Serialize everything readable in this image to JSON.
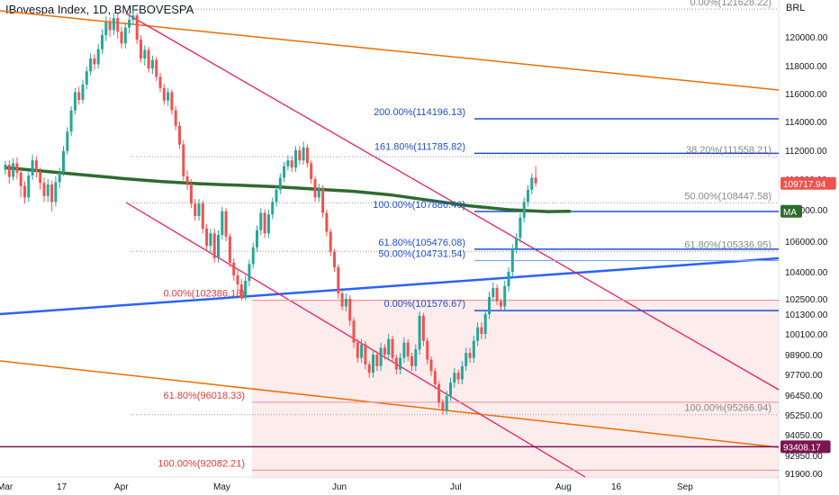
{
  "chart_title": "IBovespa Index, 1D, BMFBOVESPA",
  "currency": "BRL",
  "colors": {
    "up": "#26a69a",
    "down": "#ef5350",
    "ma": "#2e6b2e",
    "channel": "#e91e63",
    "trend_orange": "#ef6c00",
    "trend_blue": "#2962ff",
    "fib_blue": "#1e50d2",
    "fib_red": "#e53935",
    "fib_gray": "#888888",
    "support_line": "#7b1450",
    "shade": "#fdecec"
  },
  "chart_data": {
    "type": "candlestick",
    "title": "IBovespa Index, 1D, BMFBOVESPA",
    "x_ticks": [
      "Mar",
      "17",
      "Apr",
      "May",
      "Jun",
      "Jul",
      "Aug",
      "16",
      "Sep"
    ],
    "y_ticks": [
      120000,
      118000,
      116000,
      114000,
      112000,
      110000,
      108000,
      106000,
      104000,
      102500,
      101300,
      100100,
      98900,
      97700,
      96450,
      95250,
      94050,
      92950,
      91900
    ],
    "y_tick_labels": [
      "120000.00",
      "118000.00",
      "116000.00",
      "114000.00",
      "112000.00",
      "110000.00",
      "108000.00",
      "106000.00",
      "104000.00",
      "102500.00",
      "101300.00",
      "100100.00",
      "98900.00",
      "97700.00",
      "96450.00",
      "95250.00",
      "94050.00",
      "92950.00",
      "91900.00"
    ],
    "price_badges": [
      {
        "label": "109717.94",
        "value": 109717.94,
        "color": "#ef5350"
      },
      {
        "label": "MA",
        "value": 107900,
        "color": "#2e6b2e"
      },
      {
        "label": "93408.17",
        "value": 93408.17,
        "color": "#7b1450"
      }
    ],
    "fib_labels": [
      {
        "text": "0.00%(121628.22)",
        "value": 121628.22,
        "color": "#888888",
        "side": "right"
      },
      {
        "text": "200.00%(114196.13)",
        "value": 114196.13,
        "color": "#1e50d2",
        "side": "left"
      },
      {
        "text": "161.80%(111785.82)",
        "value": 111785.82,
        "color": "#1e50d2",
        "side": "left"
      },
      {
        "text": "38.20%(111558.21)",
        "value": 111558.21,
        "color": "#888888",
        "side": "right"
      },
      {
        "text": "50.00%(108447.58)",
        "value": 108447.58,
        "color": "#888888",
        "side": "right"
      },
      {
        "text": "100.00%(107886.40)",
        "value": 107886.4,
        "color": "#1e50d2",
        "side": "left"
      },
      {
        "text": "61.80%(105476.08)",
        "value": 105476.08,
        "color": "#1e50d2",
        "side": "left"
      },
      {
        "text": "50.00%(104731.54)",
        "value": 104731.54,
        "color": "#1e50d2",
        "side": "left"
      },
      {
        "text": "61.80%(105336.95)",
        "value": 105336.95,
        "color": "#888888",
        "side": "right"
      },
      {
        "text": "0.00%(102386.18)",
        "value": 102386.18,
        "color": "#e53935",
        "side": "left"
      },
      {
        "text": "0.00%(101576.67)",
        "value": 101576.67,
        "color": "#1e50d2",
        "side": "left"
      },
      {
        "text": "61.80%(96018.33)",
        "value": 96018.33,
        "color": "#e53935",
        "side": "left"
      },
      {
        "text": "100.00%(95266.94)",
        "value": 95266.94,
        "color": "#888888",
        "side": "right"
      },
      {
        "text": "100.00%(92082.21)",
        "value": 92082.21,
        "color": "#e53935",
        "side": "left"
      }
    ],
    "ma_series": [
      {
        "day": 0,
        "value": 110800
      },
      {
        "day": 10,
        "value": 110550
      },
      {
        "day": 20,
        "value": 110300
      },
      {
        "day": 30,
        "value": 110050
      },
      {
        "day": 40,
        "value": 109850
      },
      {
        "day": 50,
        "value": 109700
      },
      {
        "day": 60,
        "value": 109600
      },
      {
        "day": 70,
        "value": 109500
      },
      {
        "day": 80,
        "value": 109350
      },
      {
        "day": 90,
        "value": 109200
      },
      {
        "day": 100,
        "value": 108950
      },
      {
        "day": 110,
        "value": 108600
      },
      {
        "day": 120,
        "value": 108250
      },
      {
        "day": 130,
        "value": 108000
      },
      {
        "day": 140,
        "value": 107880
      },
      {
        "day": 146,
        "value": 107900
      }
    ],
    "candles": [
      {
        "o": 110650,
        "c": 111000,
        "h": 111250,
        "l": 110300
      },
      {
        "o": 111000,
        "c": 110150,
        "h": 111300,
        "l": 109700
      },
      {
        "o": 110150,
        "c": 111100,
        "h": 111450,
        "l": 109900
      },
      {
        "o": 111100,
        "c": 110450,
        "h": 111500,
        "l": 110000
      },
      {
        "o": 110450,
        "c": 109550,
        "h": 110700,
        "l": 108800
      },
      {
        "o": 109550,
        "c": 108800,
        "h": 109850,
        "l": 108400
      },
      {
        "o": 108800,
        "c": 110250,
        "h": 110600,
        "l": 108500
      },
      {
        "o": 110250,
        "c": 111300,
        "h": 111700,
        "l": 109950
      },
      {
        "o": 111300,
        "c": 110500,
        "h": 111600,
        "l": 110100
      },
      {
        "o": 110500,
        "c": 109750,
        "h": 110800,
        "l": 109300
      },
      {
        "o": 109750,
        "c": 108900,
        "h": 110100,
        "l": 108500
      },
      {
        "o": 108900,
        "c": 109650,
        "h": 110000,
        "l": 108500
      },
      {
        "o": 109650,
        "c": 108500,
        "h": 109900,
        "l": 107900
      },
      {
        "o": 108500,
        "c": 109800,
        "h": 110200,
        "l": 108200
      },
      {
        "o": 109800,
        "c": 110450,
        "h": 110800,
        "l": 109400
      },
      {
        "o": 110450,
        "c": 111950,
        "h": 112300,
        "l": 110200
      },
      {
        "o": 111950,
        "c": 113300,
        "h": 113600,
        "l": 111700
      },
      {
        "o": 113300,
        "c": 114800,
        "h": 115100,
        "l": 113000
      },
      {
        "o": 114800,
        "c": 116100,
        "h": 116400,
        "l": 114500
      },
      {
        "o": 116100,
        "c": 115550,
        "h": 116500,
        "l": 115200
      },
      {
        "o": 115550,
        "c": 116650,
        "h": 117000,
        "l": 115300
      },
      {
        "o": 116650,
        "c": 117600,
        "h": 117950,
        "l": 116300
      },
      {
        "o": 117600,
        "c": 118500,
        "h": 118850,
        "l": 117300
      },
      {
        "o": 118500,
        "c": 118100,
        "h": 118800,
        "l": 117700
      },
      {
        "o": 118100,
        "c": 119150,
        "h": 119500,
        "l": 117800
      },
      {
        "o": 119150,
        "c": 120100,
        "h": 120450,
        "l": 118800
      },
      {
        "o": 120100,
        "c": 120850,
        "h": 121200,
        "l": 119700
      },
      {
        "o": 120850,
        "c": 120400,
        "h": 121150,
        "l": 120000
      },
      {
        "o": 120400,
        "c": 121100,
        "h": 121400,
        "l": 120100
      },
      {
        "o": 121100,
        "c": 120300,
        "h": 121350,
        "l": 119900
      },
      {
        "o": 120300,
        "c": 119550,
        "h": 120600,
        "l": 119200
      },
      {
        "o": 119550,
        "c": 120550,
        "h": 120850,
        "l": 119200
      },
      {
        "o": 120550,
        "c": 121000,
        "h": 121400,
        "l": 120200
      },
      {
        "o": 121000,
        "c": 121250,
        "h": 121630,
        "l": 120700
      },
      {
        "o": 121250,
        "c": 119800,
        "h": 121400,
        "l": 119500
      },
      {
        "o": 119800,
        "c": 118500,
        "h": 120100,
        "l": 118200
      },
      {
        "o": 118500,
        "c": 119100,
        "h": 119400,
        "l": 118000
      },
      {
        "o": 119100,
        "c": 117800,
        "h": 119300,
        "l": 117500
      },
      {
        "o": 117800,
        "c": 118400,
        "h": 118700,
        "l": 117400
      },
      {
        "o": 118400,
        "c": 117200,
        "h": 118600,
        "l": 116900
      },
      {
        "o": 117200,
        "c": 116400,
        "h": 117500,
        "l": 116100
      },
      {
        "o": 116400,
        "c": 115500,
        "h": 116700,
        "l": 115200
      },
      {
        "o": 115500,
        "c": 116100,
        "h": 116400,
        "l": 115100
      },
      {
        "o": 116100,
        "c": 114800,
        "h": 116300,
        "l": 114500
      },
      {
        "o": 114800,
        "c": 113700,
        "h": 115100,
        "l": 113400
      },
      {
        "o": 113700,
        "c": 112400,
        "h": 114000,
        "l": 112100
      },
      {
        "o": 112400,
        "c": 110200,
        "h": 112700,
        "l": 109900
      },
      {
        "o": 110200,
        "c": 109700,
        "h": 110600,
        "l": 109300
      },
      {
        "o": 109700,
        "c": 108400,
        "h": 110000,
        "l": 108100
      },
      {
        "o": 108400,
        "c": 107600,
        "h": 108700,
        "l": 107300
      },
      {
        "o": 107600,
        "c": 108400,
        "h": 108700,
        "l": 107300
      },
      {
        "o": 108400,
        "c": 106800,
        "h": 108600,
        "l": 106500
      },
      {
        "o": 106800,
        "c": 105700,
        "h": 107100,
        "l": 105400
      },
      {
        "o": 105700,
        "c": 106500,
        "h": 106800,
        "l": 105300
      },
      {
        "o": 106500,
        "c": 104900,
        "h": 106800,
        "l": 104600
      },
      {
        "o": 104900,
        "c": 106400,
        "h": 106700,
        "l": 104600
      },
      {
        "o": 106400,
        "c": 107900,
        "h": 108200,
        "l": 106100
      },
      {
        "o": 107900,
        "c": 106300,
        "h": 108100,
        "l": 106000
      },
      {
        "o": 106300,
        "c": 104600,
        "h": 106500,
        "l": 104300
      },
      {
        "o": 104600,
        "c": 103800,
        "h": 104900,
        "l": 103500
      },
      {
        "o": 103800,
        "c": 103300,
        "h": 104100,
        "l": 103000
      },
      {
        "o": 103300,
        "c": 102550,
        "h": 103600,
        "l": 102386
      },
      {
        "o": 102550,
        "c": 103500,
        "h": 103800,
        "l": 102386
      },
      {
        "o": 103500,
        "c": 104500,
        "h": 104800,
        "l": 103200
      },
      {
        "o": 104500,
        "c": 105600,
        "h": 105900,
        "l": 104200
      },
      {
        "o": 105600,
        "c": 106700,
        "h": 107000,
        "l": 105300
      },
      {
        "o": 106700,
        "c": 107800,
        "h": 108100,
        "l": 106400
      },
      {
        "o": 107800,
        "c": 106500,
        "h": 108000,
        "l": 106200
      },
      {
        "o": 106500,
        "c": 107700,
        "h": 108000,
        "l": 106200
      },
      {
        "o": 107700,
        "c": 108500,
        "h": 108800,
        "l": 107400
      },
      {
        "o": 108500,
        "c": 109300,
        "h": 109600,
        "l": 108200
      },
      {
        "o": 109300,
        "c": 110100,
        "h": 110400,
        "l": 109000
      },
      {
        "o": 110100,
        "c": 110900,
        "h": 111200,
        "l": 109800
      },
      {
        "o": 110900,
        "c": 111300,
        "h": 111650,
        "l": 110600
      },
      {
        "o": 111300,
        "c": 110800,
        "h": 111600,
        "l": 110500
      },
      {
        "o": 110800,
        "c": 112000,
        "h": 112300,
        "l": 110500
      },
      {
        "o": 112000,
        "c": 111300,
        "h": 112300,
        "l": 111000
      },
      {
        "o": 111300,
        "c": 112200,
        "h": 112600,
        "l": 111000
      },
      {
        "o": 112200,
        "c": 111100,
        "h": 112400,
        "l": 110800
      },
      {
        "o": 111100,
        "c": 110000,
        "h": 111300,
        "l": 109700
      },
      {
        "o": 110000,
        "c": 108800,
        "h": 110200,
        "l": 108500
      },
      {
        "o": 108800,
        "c": 109400,
        "h": 109700,
        "l": 108500
      },
      {
        "o": 109400,
        "c": 107800,
        "h": 109600,
        "l": 107500
      },
      {
        "o": 107800,
        "c": 106600,
        "h": 108000,
        "l": 106300
      },
      {
        "o": 106600,
        "c": 105300,
        "h": 106800,
        "l": 105000
      },
      {
        "o": 105300,
        "c": 104300,
        "h": 105500,
        "l": 104000
      },
      {
        "o": 104300,
        "c": 102800,
        "h": 104500,
        "l": 102500
      },
      {
        "o": 102800,
        "c": 101900,
        "h": 103000,
        "l": 101600
      },
      {
        "o": 101900,
        "c": 102500,
        "h": 102800,
        "l": 101500
      },
      {
        "o": 102500,
        "c": 100900,
        "h": 102700,
        "l": 100600
      },
      {
        "o": 100900,
        "c": 99600,
        "h": 101100,
        "l": 99300
      },
      {
        "o": 99600,
        "c": 98700,
        "h": 99800,
        "l": 98400
      },
      {
        "o": 98700,
        "c": 99500,
        "h": 99800,
        "l": 98400
      },
      {
        "o": 99500,
        "c": 98300,
        "h": 99700,
        "l": 98000
      },
      {
        "o": 98300,
        "c": 97800,
        "h": 98500,
        "l": 97500
      },
      {
        "o": 97800,
        "c": 98900,
        "h": 99200,
        "l": 97500
      },
      {
        "o": 98900,
        "c": 98200,
        "h": 99100,
        "l": 97900
      },
      {
        "o": 98200,
        "c": 99300,
        "h": 99600,
        "l": 97900
      },
      {
        "o": 99300,
        "c": 98900,
        "h": 99500,
        "l": 98600
      },
      {
        "o": 98900,
        "c": 99800,
        "h": 100100,
        "l": 98600
      },
      {
        "o": 99800,
        "c": 98700,
        "h": 100000,
        "l": 98400
      },
      {
        "o": 98700,
        "c": 98000,
        "h": 98900,
        "l": 97700
      },
      {
        "o": 98000,
        "c": 98700,
        "h": 99000,
        "l": 97700
      },
      {
        "o": 98700,
        "c": 99600,
        "h": 99900,
        "l": 98400
      },
      {
        "o": 99600,
        "c": 98800,
        "h": 99800,
        "l": 98500
      },
      {
        "o": 98800,
        "c": 98200,
        "h": 99000,
        "l": 97900
      },
      {
        "o": 98200,
        "c": 99200,
        "h": 99500,
        "l": 97900
      },
      {
        "o": 99200,
        "c": 101200,
        "h": 101500,
        "l": 98900
      },
      {
        "o": 101200,
        "c": 99700,
        "h": 101400,
        "l": 99400
      },
      {
        "o": 99700,
        "c": 98600,
        "h": 99900,
        "l": 98300
      },
      {
        "o": 98600,
        "c": 97900,
        "h": 98800,
        "l": 97600
      },
      {
        "o": 97900,
        "c": 97100,
        "h": 98100,
        "l": 96800
      },
      {
        "o": 97100,
        "c": 96000,
        "h": 97300,
        "l": 95700
      },
      {
        "o": 96000,
        "c": 95500,
        "h": 96200,
        "l": 95266
      },
      {
        "o": 95500,
        "c": 96400,
        "h": 96700,
        "l": 95266
      },
      {
        "o": 96400,
        "c": 97200,
        "h": 97500,
        "l": 96100
      },
      {
        "o": 97200,
        "c": 97800,
        "h": 98100,
        "l": 96900
      },
      {
        "o": 97800,
        "c": 97400,
        "h": 98000,
        "l": 97100
      },
      {
        "o": 97400,
        "c": 98200,
        "h": 98500,
        "l": 97100
      },
      {
        "o": 98200,
        "c": 99000,
        "h": 99300,
        "l": 97900
      },
      {
        "o": 99000,
        "c": 98700,
        "h": 99300,
        "l": 98400
      },
      {
        "o": 98700,
        "c": 99700,
        "h": 100000,
        "l": 98400
      },
      {
        "o": 99700,
        "c": 100500,
        "h": 100800,
        "l": 99400
      },
      {
        "o": 100500,
        "c": 100100,
        "h": 100800,
        "l": 99800
      },
      {
        "o": 100100,
        "c": 101300,
        "h": 101600,
        "l": 99800
      },
      {
        "o": 101300,
        "c": 102600,
        "h": 102900,
        "l": 101000
      },
      {
        "o": 102600,
        "c": 103100,
        "h": 103400,
        "l": 102300
      },
      {
        "o": 103100,
        "c": 102300,
        "h": 103300,
        "l": 102000
      },
      {
        "o": 102300,
        "c": 101900,
        "h": 102500,
        "l": 101600
      },
      {
        "o": 101900,
        "c": 103200,
        "h": 103500,
        "l": 101600
      },
      {
        "o": 103200,
        "c": 104000,
        "h": 104300,
        "l": 102900
      },
      {
        "o": 104000,
        "c": 105500,
        "h": 105800,
        "l": 103700
      },
      {
        "o": 105500,
        "c": 106200,
        "h": 106500,
        "l": 105200
      },
      {
        "o": 106200,
        "c": 107500,
        "h": 107800,
        "l": 105900
      },
      {
        "o": 107500,
        "c": 108500,
        "h": 108800,
        "l": 107200
      },
      {
        "o": 108500,
        "c": 109300,
        "h": 109600,
        "l": 108200
      },
      {
        "o": 109300,
        "c": 110100,
        "h": 110400,
        "l": 109000
      },
      {
        "o": 110100,
        "c": 109717,
        "h": 110900,
        "l": 109500
      }
    ]
  }
}
